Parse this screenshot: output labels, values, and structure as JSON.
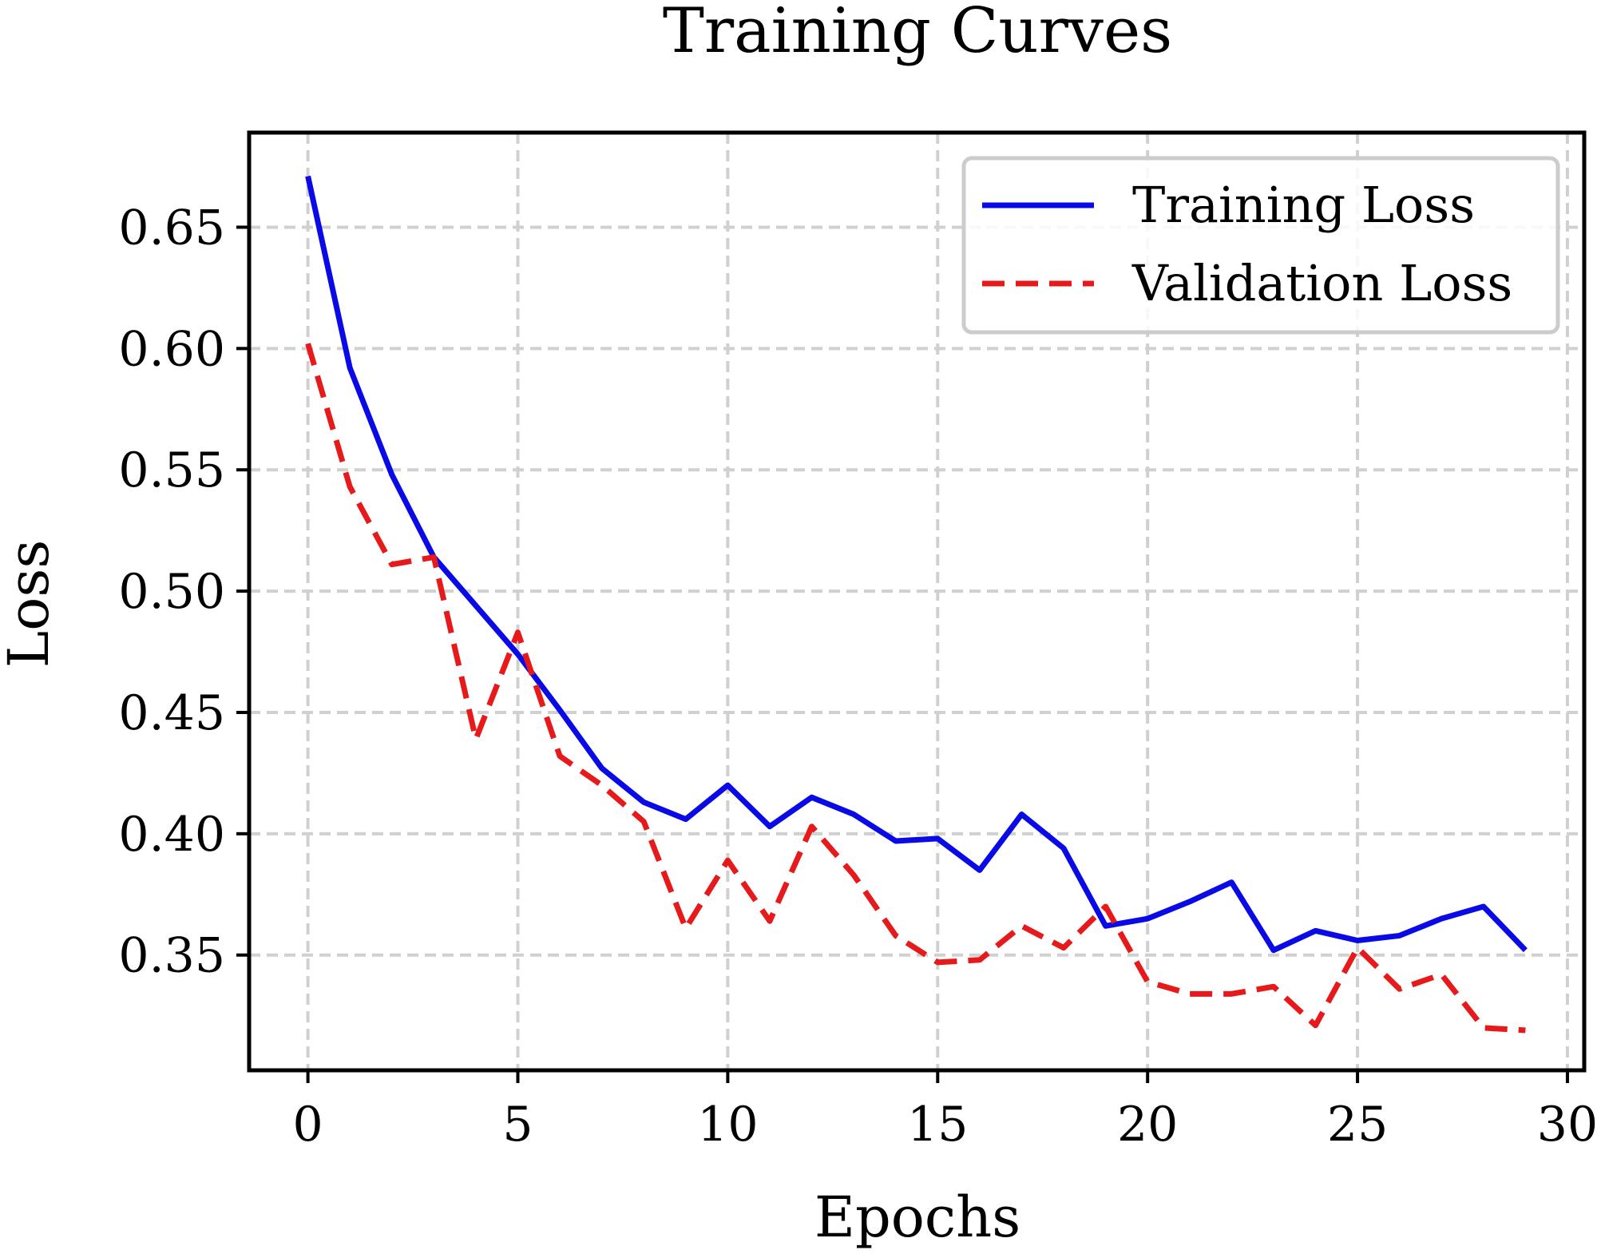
{
  "chart_data": {
    "type": "line",
    "title": "Training Curves",
    "xlabel": "Epochs",
    "ylabel": "Loss",
    "xlim": [
      -1.4,
      30.4
    ],
    "ylim": [
      0.3025,
      0.689
    ],
    "grid": true,
    "legend_position": "top-right",
    "x_ticks": [
      0,
      5,
      10,
      15,
      20,
      25,
      30
    ],
    "x_tick_labels": [
      "0",
      "5",
      "10",
      "15",
      "20",
      "25",
      "30"
    ],
    "y_ticks": [
      0.35,
      0.4,
      0.45,
      0.5,
      0.55,
      0.6,
      0.65
    ],
    "y_tick_labels": [
      "0.35",
      "0.40",
      "0.45",
      "0.50",
      "0.55",
      "0.60",
      "0.65"
    ],
    "x": [
      0,
      1,
      2,
      3,
      4,
      5,
      6,
      7,
      8,
      9,
      10,
      11,
      12,
      13,
      14,
      15,
      16,
      17,
      18,
      19,
      20,
      21,
      22,
      23,
      24,
      25,
      26,
      27,
      28,
      29
    ],
    "series": [
      {
        "name": "Training Loss",
        "color": "#0a0ae6",
        "style": "solid",
        "values": [
          0.671,
          0.592,
          0.548,
          0.514,
          0.494,
          0.474,
          0.451,
          0.427,
          0.413,
          0.406,
          0.42,
          0.403,
          0.415,
          0.408,
          0.397,
          0.398,
          0.385,
          0.408,
          0.394,
          0.362,
          0.365,
          0.372,
          0.38,
          0.352,
          0.36,
          0.356,
          0.358,
          0.365,
          0.37,
          0.352
        ]
      },
      {
        "name": "Validation Loss",
        "color": "#e61a1a",
        "style": "dashed",
        "values": [
          0.602,
          0.543,
          0.511,
          0.514,
          0.439,
          0.483,
          0.432,
          0.42,
          0.405,
          0.361,
          0.389,
          0.364,
          0.403,
          0.383,
          0.358,
          0.347,
          0.348,
          0.362,
          0.353,
          0.37,
          0.339,
          0.334,
          0.334,
          0.337,
          0.321,
          0.353,
          0.336,
          0.342,
          0.32,
          0.319
        ]
      }
    ]
  }
}
